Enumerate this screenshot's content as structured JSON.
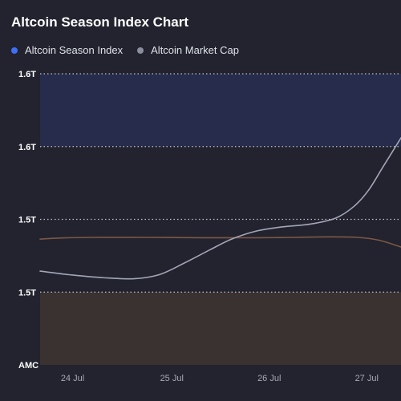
{
  "chart_data": {
    "type": "line",
    "title": "Altcoin Season Index Chart",
    "legend_position": "top-left",
    "x_ticks": [
      "24 Jul",
      "25 Jul",
      "26 Jul",
      "27 Jul"
    ],
    "y_ticks": [
      "1.6T",
      "1.6T",
      "1.5T",
      "1.5T",
      "AMC"
    ],
    "grid": "horizontal-dotted",
    "bands": [
      {
        "name": "altcoin-season-zone",
        "from_level": 1,
        "to_level": 0.75,
        "color": "#272c4c"
      },
      {
        "name": "bitcoin-season-zone",
        "from_level": 0.25,
        "to_level": 0,
        "color": "#3a3131"
      }
    ],
    "series": [
      {
        "name": "Altcoin Season Index",
        "color": "#3e6ff5",
        "line_color": "#7c5846",
        "values_relative": [
          [
            0.0,
            0.432
          ],
          [
            0.06,
            0.436
          ],
          [
            0.15,
            0.438
          ],
          [
            0.3,
            0.438
          ],
          [
            0.45,
            0.437
          ],
          [
            0.6,
            0.437
          ],
          [
            0.7,
            0.438
          ],
          [
            0.8,
            0.44
          ],
          [
            0.88,
            0.438
          ],
          [
            0.94,
            0.428
          ],
          [
            1.0,
            0.405
          ]
        ]
      },
      {
        "name": "Altcoin Market Cap",
        "color": "#8b8e9e",
        "line_color": "#a3a6b8",
        "values_relative": [
          [
            0.0,
            0.322
          ],
          [
            0.08,
            0.31
          ],
          [
            0.17,
            0.3
          ],
          [
            0.26,
            0.296
          ],
          [
            0.33,
            0.31
          ],
          [
            0.4,
            0.35
          ],
          [
            0.47,
            0.395
          ],
          [
            0.53,
            0.432
          ],
          [
            0.6,
            0.46
          ],
          [
            0.67,
            0.474
          ],
          [
            0.75,
            0.484
          ],
          [
            0.82,
            0.505
          ],
          [
            0.87,
            0.545
          ],
          [
            0.91,
            0.6
          ],
          [
            0.95,
            0.68
          ],
          [
            1.0,
            0.78
          ]
        ]
      }
    ]
  },
  "colors": {
    "background": "#22232e",
    "grid": "#cfd2dc",
    "tick_text": "#a7a9b6",
    "y_tick_text": "#ffffff"
  }
}
